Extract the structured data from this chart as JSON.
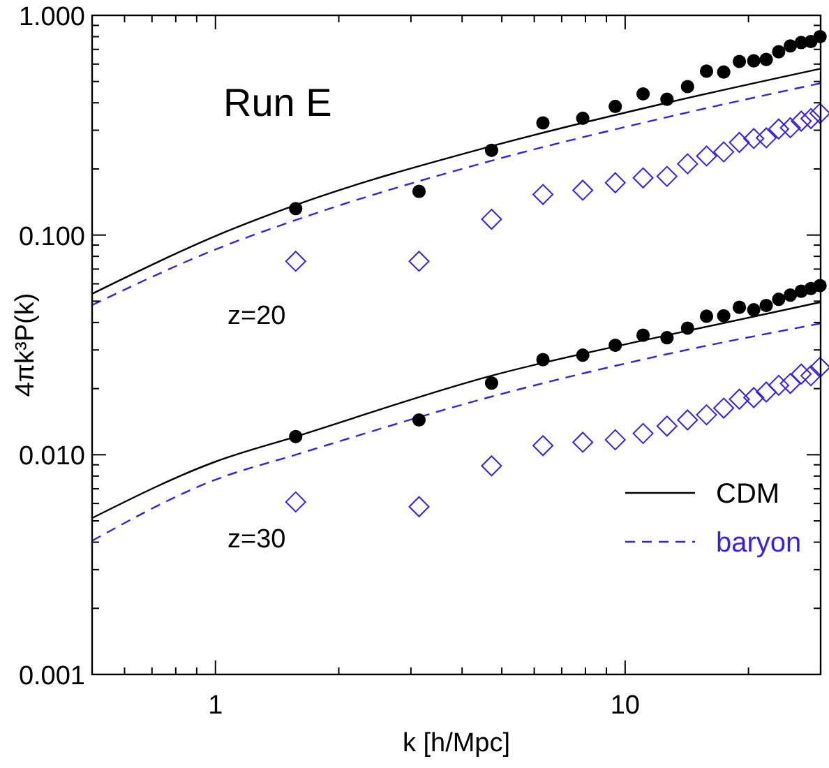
{
  "chart_data": {
    "type": "scatter",
    "xlabel": "k [h/Mpc]",
    "ylabel": "4πk³P(k)",
    "log": "xy",
    "grid": false,
    "legend": "bottom right",
    "xlim": [
      0.5,
      30
    ],
    "ylim": [
      0.001,
      1
    ],
    "xticks": [
      {
        "value": 0.5,
        "label": null
      },
      {
        "value": 0.6,
        "label": null
      },
      {
        "value": 0.7,
        "label": null
      },
      {
        "value": 0.8,
        "label": null
      },
      {
        "value": 0.9,
        "label": null
      },
      1,
      {
        "value": 2,
        "label": null
      },
      {
        "value": 3,
        "label": null
      },
      {
        "value": 4,
        "label": null
      },
      {
        "value": 5,
        "label": null
      },
      {
        "value": 6,
        "label": null
      },
      {
        "value": 7,
        "label": null
      },
      {
        "value": 8,
        "label": null
      },
      {
        "value": 9,
        "label": null
      },
      10,
      {
        "value": 20,
        "label": null
      },
      {
        "value": 30,
        "label": null
      }
    ],
    "yticks": [
      {
        "value": 0.001,
        "label": "0.001"
      },
      {
        "value": 0.002,
        "label": null
      },
      {
        "value": 0.003,
        "label": null
      },
      {
        "value": 0.004,
        "label": null
      },
      {
        "value": 0.005,
        "label": null
      },
      {
        "value": 0.006,
        "label": null
      },
      {
        "value": 0.007,
        "label": null
      },
      {
        "value": 0.008,
        "label": null
      },
      {
        "value": 0.009,
        "label": null
      },
      {
        "value": 0.01,
        "label": "0.010"
      },
      {
        "value": 0.02,
        "label": null
      },
      {
        "value": 0.03,
        "label": null
      },
      {
        "value": 0.04,
        "label": null
      },
      {
        "value": 0.05,
        "label": null
      },
      {
        "value": 0.06,
        "label": null
      },
      {
        "value": 0.07,
        "label": null
      },
      {
        "value": 0.08,
        "label": null
      },
      {
        "value": 0.09,
        "label": null
      },
      {
        "value": 0.1,
        "label": "0.100"
      },
      {
        "value": 0.2,
        "label": null
      },
      {
        "value": 0.3,
        "label": null
      },
      {
        "value": 0.4,
        "label": null
      },
      {
        "value": 0.5,
        "label": null
      },
      {
        "value": 0.6,
        "label": null
      },
      {
        "value": 0.7,
        "label": null
      },
      {
        "value": 0.8,
        "label": null
      },
      {
        "value": 0.9,
        "label": null
      },
      {
        "value": 1,
        "label": "1.000"
      }
    ],
    "annotations": [
      "Run E",
      "z=20",
      "z=30"
    ],
    "x": [
      1.57,
      3.14,
      4.72,
      6.3,
      7.88,
      9.46,
      11.06,
      12.65,
      14.2,
      15.8,
      17.4,
      19.0,
      20.6,
      22.1,
      23.7,
      25.3,
      26.9,
      28.4,
      29.9
    ],
    "series": [
      {
        "type": "line",
        "name": "CDM",
        "color": "#000000",
        "marker": "none",
        "line_style": "solid",
        "x": [
          0.5,
          1,
          1.57,
          4.72,
          12.65,
          30
        ],
        "values": [
          0.054,
          0.099,
          0.137,
          0.254,
          0.4,
          0.572
        ]
      },
      {
        "type": "line",
        "name": "baryon",
        "color": "#3a1fe6",
        "marker": "none",
        "line_style": "dashed",
        "x": [
          0.5,
          1,
          1.57,
          4.72,
          12.65,
          30
        ],
        "values": [
          0.048,
          0.086,
          0.117,
          0.218,
          0.344,
          0.491
        ]
      },
      {
        "type": "line",
        "color": "#000000",
        "marker": "none",
        "line_style": "solid",
        "x": [
          0.5,
          1,
          1.57,
          4.72,
          12.65,
          30
        ],
        "values": [
          0.00515,
          0.0093,
          0.0121,
          0.0229,
          0.035,
          0.0495
        ]
      },
      {
        "type": "line",
        "color": "#3a1fe6",
        "marker": "none",
        "line_style": "dashed",
        "x": [
          0.5,
          1,
          1.57,
          4.72,
          12.65,
          30
        ],
        "values": [
          0.00406,
          0.0077,
          0.01,
          0.0184,
          0.0287,
          0.0396
        ]
      },
      {
        "color": "#000000",
        "marker": "circle",
        "values": [
          0.132,
          0.158,
          0.243,
          0.324,
          0.34,
          0.385,
          0.439,
          0.415,
          0.474,
          0.557,
          0.552,
          0.617,
          0.621,
          0.63,
          0.683,
          0.726,
          0.752,
          0.76,
          0.8
        ]
      },
      {
        "color": "#3a1fe6",
        "marker": "diamond",
        "values": [
          0.076,
          0.076,
          0.118,
          0.153,
          0.16,
          0.173,
          0.182,
          0.185,
          0.211,
          0.229,
          0.239,
          0.264,
          0.275,
          0.277,
          0.304,
          0.308,
          0.33,
          0.339,
          0.358
        ]
      },
      {
        "color": "#000000",
        "marker": "circle",
        "values": [
          0.0121,
          0.0144,
          0.0212,
          0.0271,
          0.0284,
          0.0315,
          0.035,
          0.0341,
          0.0377,
          0.0427,
          0.0429,
          0.0469,
          0.0457,
          0.0478,
          0.051,
          0.0533,
          0.0555,
          0.0571,
          0.0589
        ]
      },
      {
        "color": "#3a1fe6",
        "marker": "diamond",
        "values": [
          0.0061,
          0.0058,
          0.0089,
          0.011,
          0.0114,
          0.0117,
          0.0125,
          0.0135,
          0.0144,
          0.0152,
          0.0163,
          0.0179,
          0.0182,
          0.0193,
          0.0207,
          0.0211,
          0.0233,
          0.0229,
          0.025
        ]
      }
    ]
  }
}
